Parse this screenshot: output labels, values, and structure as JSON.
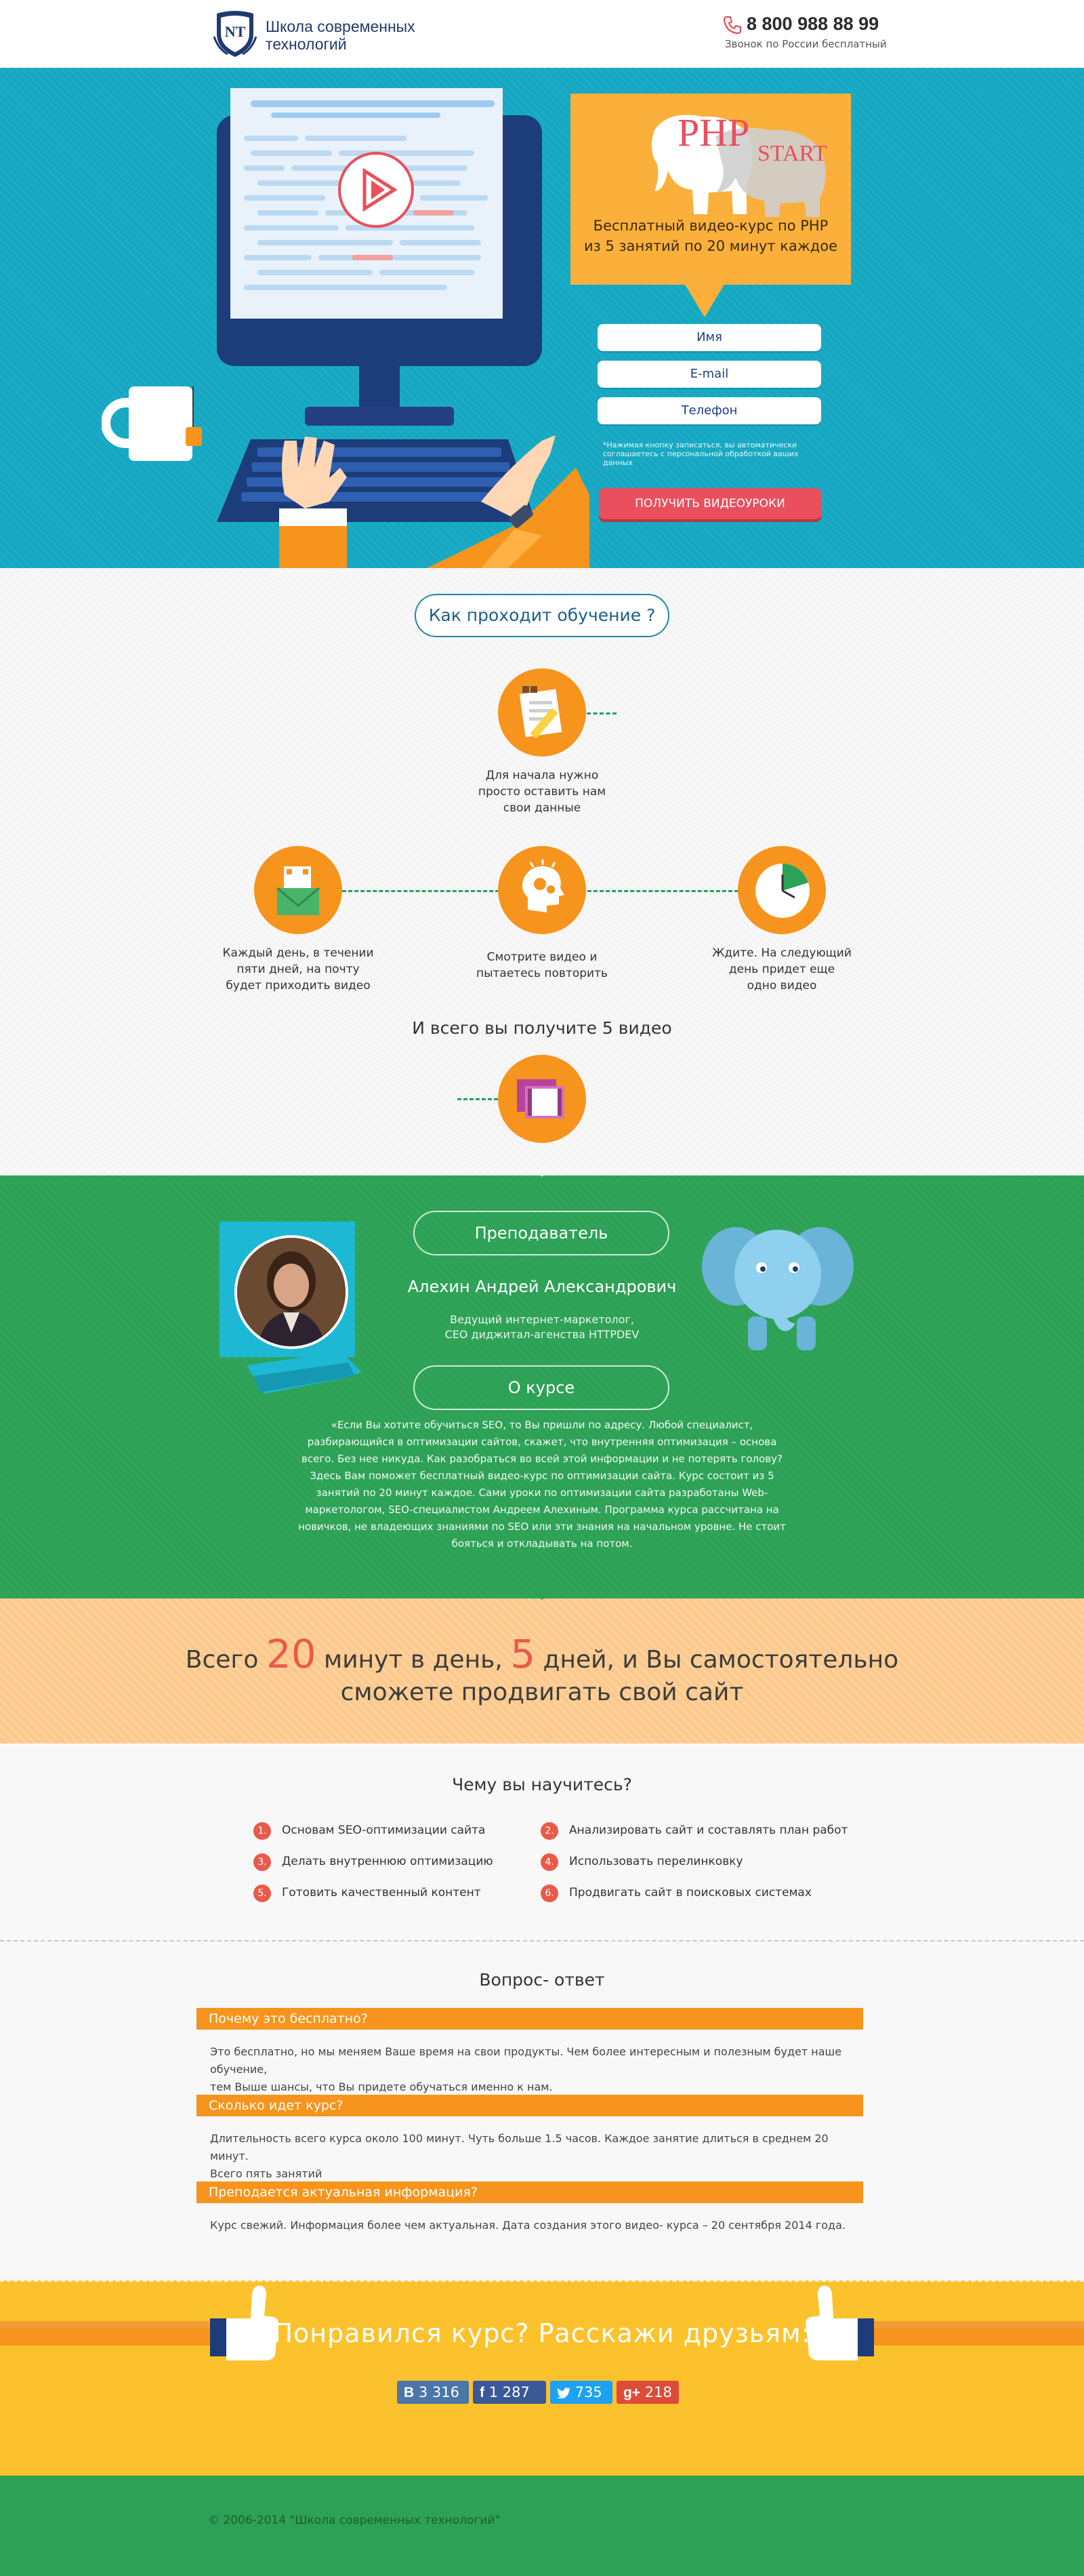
{
  "header": {
    "logo_initials": "NT",
    "logo_line1": "Школа современных",
    "logo_line2": "технологий",
    "phone": "8 800 988 88 99",
    "phone_note": "Звонок по России бесплатный"
  },
  "hero": {
    "php_text": "PHP",
    "start_text": "START",
    "headline_line1": "Бесплатный видео-курс по PHP",
    "headline_line2": "из 5 занятий по 20 минут каждое",
    "name_placeholder": "Имя",
    "email_placeholder": "E-mail",
    "phone_placeholder": "Телефон",
    "note": "*Нажимая кнопку записаться, вы автоматически соглашаетесь с персональной обработкой ваших данных",
    "cta": "ПОЛУЧИТЬ ВИДЕОУРОКИ"
  },
  "training": {
    "title": "Как проходит обучение ?",
    "step1": [
      "Для начала нужно",
      "просто оставить нам",
      "свои данные"
    ],
    "step2": [
      "Каждый день, в течении",
      "пяти дней, на почту",
      "будет приходить видео"
    ],
    "step3": [
      "Смотрите видео и",
      "пытаетесь повторить"
    ],
    "step4": [
      "Ждите. На следующий",
      "день придет еще",
      "одно видео"
    ],
    "total": "И всего вы получите 5 видео"
  },
  "teacher": {
    "title": "Преподаватель",
    "name": "Алехин Андрей Александрович",
    "role1": "Ведущий интернет-маркетолог,",
    "role2": "CEO диджитал-агенства HTTPDEV",
    "about_title": "О курсе",
    "about": [
      "«Если Вы хотите обучиться SEO, то Вы пришли по адресу. Любой специалист,",
      "разбирающийся в оптимизации сайтов, скажет, что внутренняя оптимизация – основа",
      "всего. Без нее никуда. Как разобраться во всей этой информации и не потерять голову?",
      "Здесь Вам поможет бесплатный видео-курс по оптимизации сайта. Курс состоит из 5",
      "занятий по 20 минут каждое. Сами уроки по оптимизации сайта разработаны Web-",
      "маркетологом, SEO-специалистом Андреем Алехиным. Программа курса рассчитана на",
      "новичков, не владеющих знаниями по SEO или эти знания на начальном уровне. Не стоит",
      "бояться и откладывать на потом."
    ]
  },
  "motivation": {
    "part1": "Всего ",
    "num1": "20",
    "part2": " минут в день, ",
    "num2": "5",
    "part3": " дней, и Вы самостоятельно",
    "line2": "сможете продвигать свой сайт"
  },
  "learn": {
    "title": "Чему вы научитесь?",
    "items": [
      {
        "n": "1.",
        "text": "Основам SEO-оптимизации сайта"
      },
      {
        "n": "2.",
        "text": "Анализировать сайт и составлять план работ"
      },
      {
        "n": "3.",
        "text": "Делать внутреннюю оптимизацию"
      },
      {
        "n": "4.",
        "text": "Использовать перелинковку"
      },
      {
        "n": "5.",
        "text": "Готовить качественный контент"
      },
      {
        "n": "6.",
        "text": "Продвигать сайт в поисковых системах"
      }
    ]
  },
  "faq": {
    "title": "Вопрос- ответ",
    "items": [
      {
        "q": "Почему это бесплатно?",
        "a": [
          "Это бесплатно, но мы меняем Ваше время на свои продукты. Чем более интересным и полезным будет наше обучение,",
          "тем Выше шансы, что Вы придете обучаться именно к нам."
        ]
      },
      {
        "q": "Сколько идет курс?",
        "a": [
          "Длительность всего курса около 100 минут. Чуть больше 1.5 часов. Каждое занятие длиться в среднем 20 минут.",
          "Всего пять занятий"
        ]
      },
      {
        "q": "Преподается актуальная информация?",
        "a": [
          "Курс свежий. Информация более чем актуальная. Дата создания этого видео- курса – 20 сентября 2014 года."
        ]
      }
    ]
  },
  "share": {
    "title": "Понравился курс? Расскажи друзьям:",
    "vk": "3 316",
    "fb": "1 287",
    "tw": "735",
    "gp": "218",
    "vk_icon": "B",
    "fb_icon": "f",
    "gp_icon": "g+"
  },
  "footer": {
    "copyright": "© 2006-2014 \"Школа современных технологий\""
  },
  "colors": {
    "hero_bg": "#16a8c2",
    "orange": "#f7941d",
    "green": "#2da155",
    "cta": "#e94f5d",
    "share_bg": "#fcc22d"
  }
}
